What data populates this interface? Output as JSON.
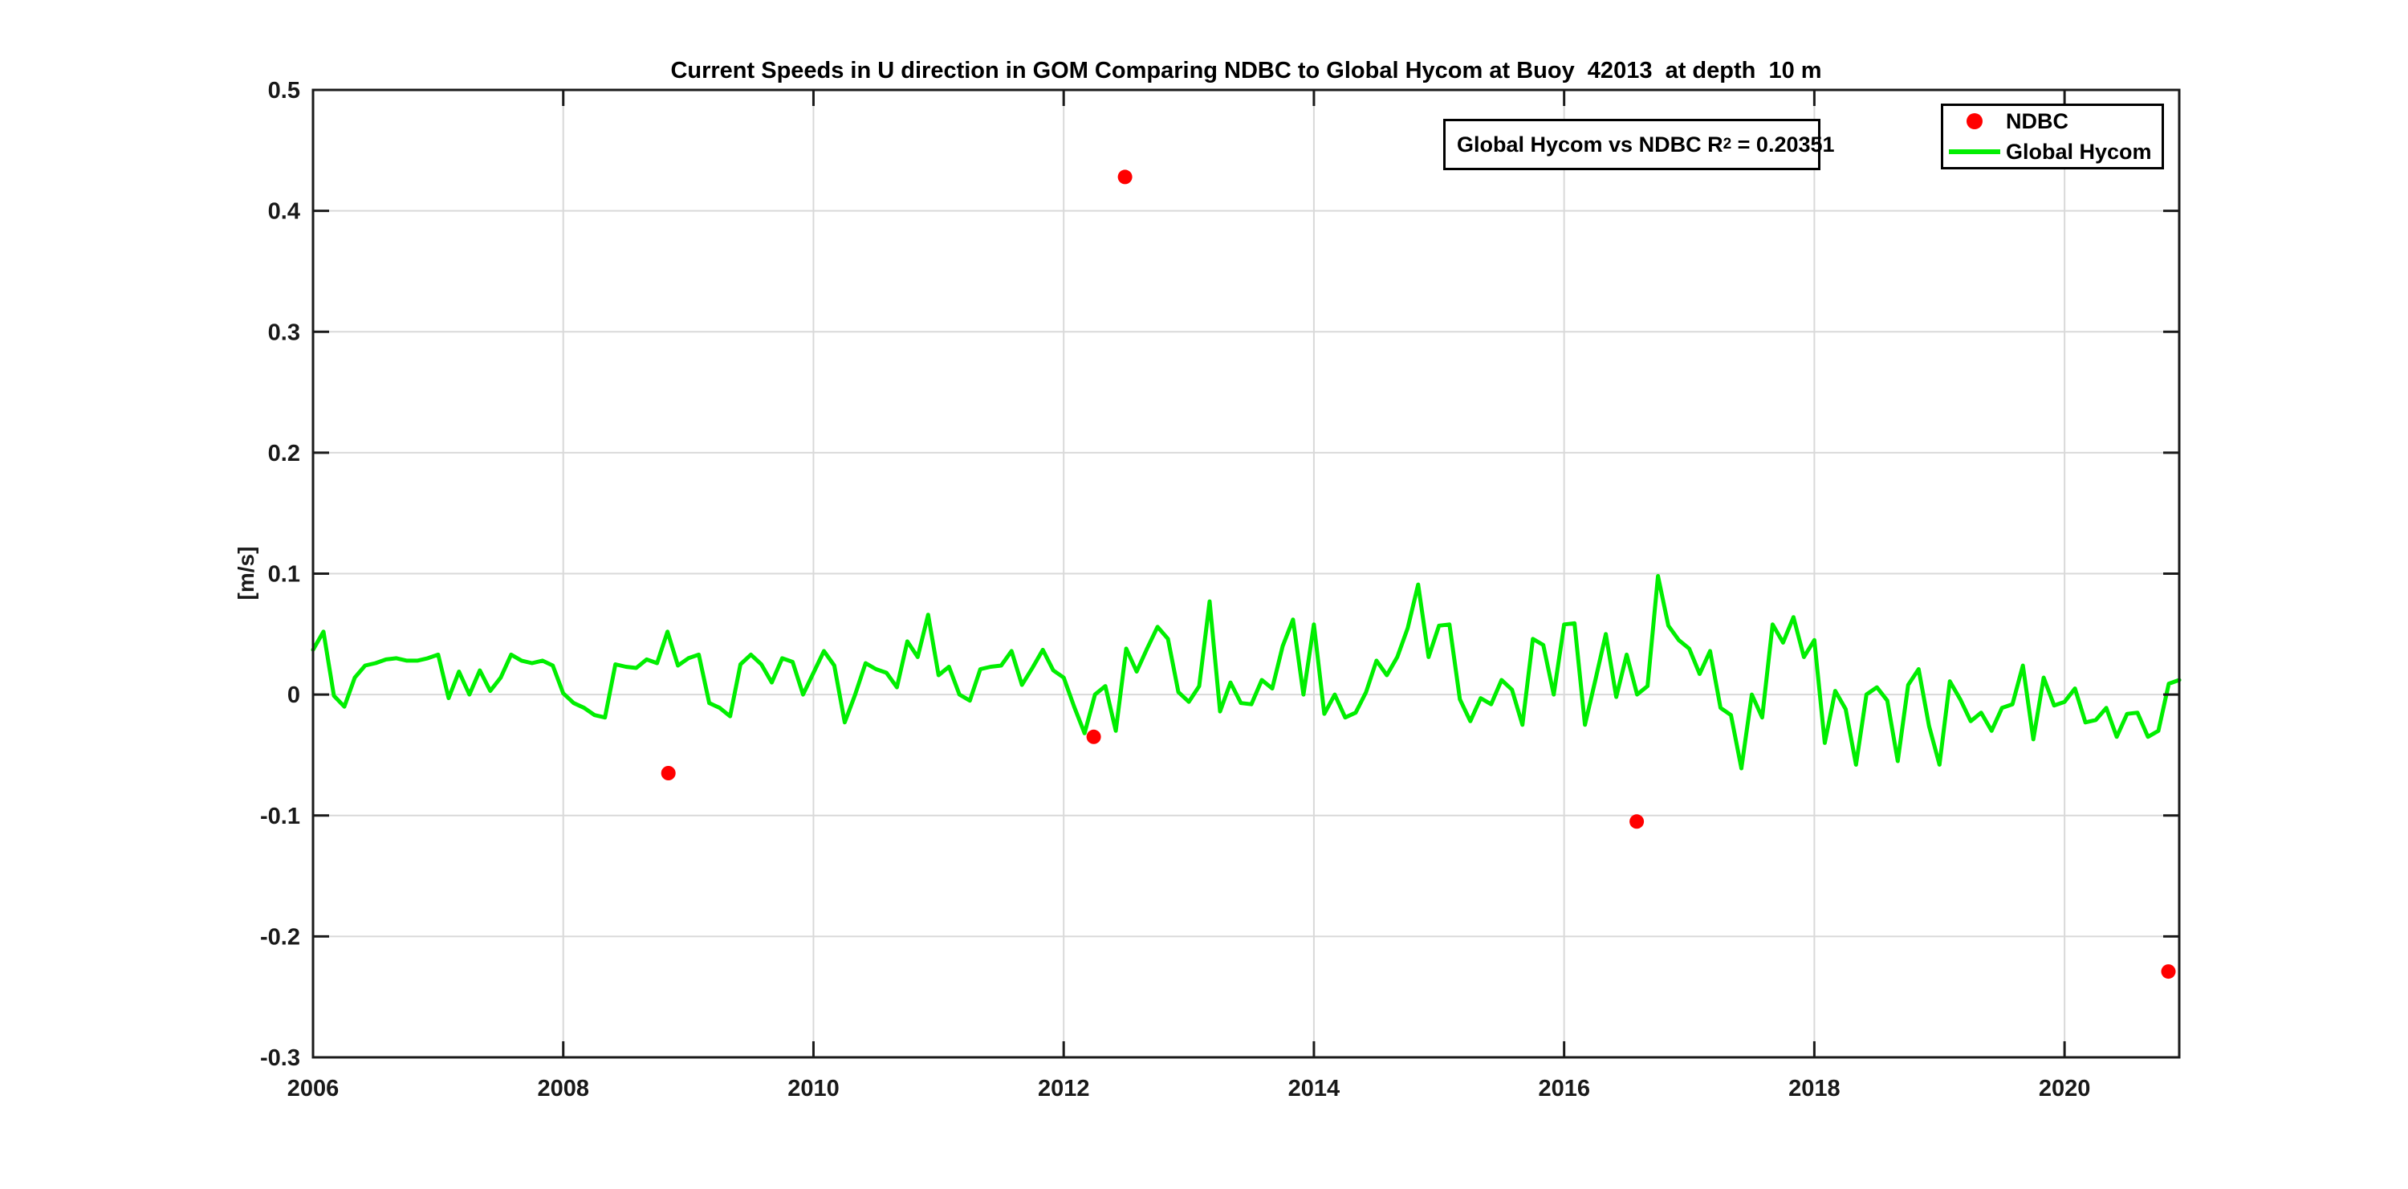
{
  "chart_data": {
    "type": "line+scatter",
    "title": "Current Speeds in U direction in GOM Comparing NDBC to Global Hycom at Buoy  42013  at depth  10 m",
    "xlabel": "",
    "ylabel": "[m/s]",
    "xlim": [
      2006,
      2020.9167
    ],
    "ylim": [
      -0.3,
      0.5
    ],
    "xticks": [
      2006,
      2008,
      2010,
      2012,
      2014,
      2016,
      2018,
      2020
    ],
    "xtick_labels": [
      "2006",
      "2008",
      "2010",
      "2012",
      "2014",
      "2016",
      "2018",
      "2020"
    ],
    "yticks": [
      -0.3,
      -0.2,
      -0.1,
      0,
      0.1,
      0.2,
      0.3,
      0.4,
      0.5
    ],
    "ytick_labels": [
      "-0.3",
      "-0.2",
      "-0.1",
      "0",
      "0.1",
      "0.2",
      "0.3",
      "0.4",
      "0.5"
    ],
    "grid": true,
    "grid_color": "#d9d9d9",
    "axis_color": "#1a1a1a",
    "annotation": {
      "prefix": "Global Hycom vs NDBC R",
      "sup": "2",
      "suffix": " = 0.20351"
    },
    "legend": {
      "position": "top-right",
      "entries": [
        {
          "label": "NDBC",
          "marker": "red-dot",
          "color": "#ff0000"
        },
        {
          "label": "Global Hycom",
          "marker": "green-line",
          "color": "#00ee00"
        }
      ]
    },
    "series": [
      {
        "name": "NDBC",
        "type": "scatter",
        "color": "#ff0000",
        "points": [
          [
            2008.84,
            -0.065
          ],
          [
            2012.24,
            -0.035
          ],
          [
            2012.49,
            0.428
          ],
          [
            2016.58,
            -0.105
          ],
          [
            2020.83,
            -0.229
          ]
        ]
      },
      {
        "name": "Global Hycom",
        "type": "line",
        "color": "#00ee00",
        "x_start": 2006.0,
        "x_step_years": 0.0833333,
        "values": [
          0.037,
          0.052,
          -0.001,
          -0.01,
          0.014,
          0.024,
          0.026,
          0.029,
          0.03,
          0.028,
          0.028,
          0.03,
          0.033,
          -0.003,
          0.019,
          0.0,
          0.02,
          0.003,
          0.014,
          0.033,
          0.028,
          0.026,
          0.028,
          0.024,
          0.001,
          -0.007,
          -0.011,
          -0.017,
          -0.019,
          0.025,
          0.023,
          0.022,
          0.029,
          0.026,
          0.052,
          0.024,
          0.03,
          0.033,
          -0.007,
          -0.011,
          -0.018,
          0.025,
          0.033,
          0.025,
          0.01,
          0.03,
          0.027,
          0.0,
          0.018,
          0.036,
          0.024,
          -0.023,
          0.0,
          0.026,
          0.021,
          0.018,
          0.006,
          0.044,
          0.031,
          0.066,
          0.016,
          0.023,
          0.0,
          -0.005,
          0.021,
          0.023,
          0.024,
          0.036,
          0.008,
          0.022,
          0.037,
          0.02,
          0.014,
          -0.01,
          -0.032,
          0.0,
          0.007,
          -0.03,
          0.038,
          0.019,
          0.038,
          0.056,
          0.046,
          0.002,
          -0.006,
          0.007,
          0.077,
          -0.014,
          0.01,
          -0.007,
          -0.008,
          0.012,
          0.005,
          0.04,
          0.062,
          0.0,
          0.058,
          -0.016,
          0.0,
          -0.019,
          -0.015,
          0.002,
          0.028,
          0.016,
          0.031,
          0.055,
          0.091,
          0.031,
          0.057,
          0.058,
          -0.004,
          -0.022,
          -0.003,
          -0.008,
          0.012,
          0.004,
          -0.025,
          0.046,
          0.041,
          0.0,
          0.058,
          0.059,
          -0.025,
          0.012,
          0.05,
          -0.002,
          0.033,
          0.0,
          0.007,
          0.098,
          0.057,
          0.045,
          0.038,
          0.017,
          0.036,
          -0.011,
          -0.017,
          -0.061,
          0.0,
          -0.019,
          0.058,
          0.043,
          0.064,
          0.031,
          0.045,
          -0.04,
          0.003,
          -0.012,
          -0.058,
          0.0,
          0.006,
          -0.005,
          -0.055,
          0.008,
          0.021,
          -0.026,
          -0.058,
          0.011,
          -0.004,
          -0.022,
          -0.015,
          -0.03,
          -0.011,
          -0.008,
          0.024,
          -0.037,
          0.014,
          -0.009,
          -0.006,
          0.005,
          -0.023,
          -0.021,
          -0.011,
          -0.035,
          -0.016,
          -0.015,
          -0.035,
          -0.03,
          0.009,
          0.012
        ]
      }
    ],
    "r_squared": 0.20351,
    "buoy_id": "42013",
    "depth_m": 10
  }
}
